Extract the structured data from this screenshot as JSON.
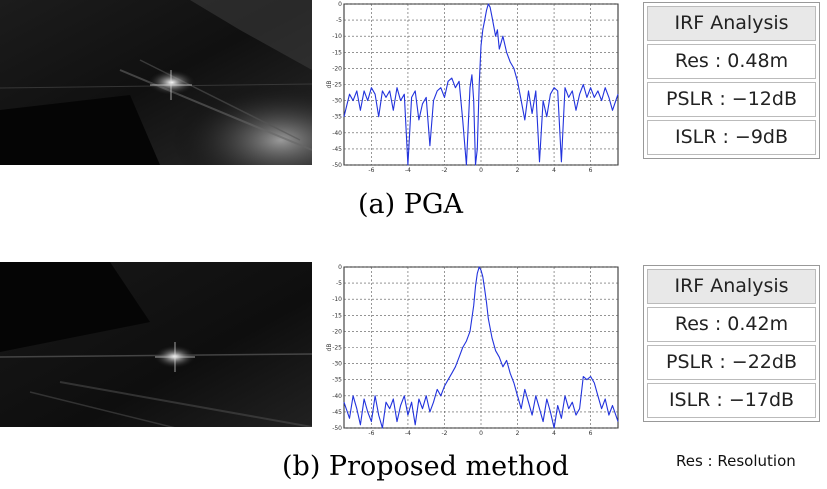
{
  "chart_data": [
    {
      "type": "line",
      "caption": "(a)  PGA",
      "ylabel": "dB",
      "xlim": [
        -7.5,
        7.5
      ],
      "ylim": [
        -50,
        0
      ],
      "x_ticks": [
        "-6",
        "-4",
        "-2",
        "0",
        "2",
        "4",
        "6"
      ],
      "y_ticks": [
        "0",
        "-5",
        "-10",
        "-15",
        "-20",
        "-25",
        "-30",
        "-35",
        "-40",
        "-45",
        "-50"
      ],
      "grid": true,
      "line_color": "#2233dd",
      "series": [
        {
          "x": [
            -7.5,
            -7.2,
            -7.0,
            -6.8,
            -6.6,
            -6.4,
            -6.2,
            -6.0,
            -5.8,
            -5.6,
            -5.4,
            -5.2,
            -5.0,
            -4.8,
            -4.6,
            -4.4,
            -4.2,
            -4.0,
            -3.8,
            -3.6,
            -3.4,
            -3.2,
            -3.0,
            -2.8,
            -2.6,
            -2.4,
            -2.2,
            -2.0,
            -1.8,
            -1.6,
            -1.4,
            -1.2,
            -1.0,
            -0.8,
            -0.6,
            -0.5,
            -0.4,
            -0.3,
            -0.2,
            -0.1,
            0.0,
            0.1,
            0.2,
            0.3,
            0.4,
            0.5,
            0.6,
            0.7,
            0.8,
            0.9,
            1.0,
            1.2,
            1.4,
            1.6,
            1.8,
            2.0,
            2.2,
            2.4,
            2.6,
            2.8,
            3.0,
            3.2,
            3.4,
            3.6,
            3.8,
            4.0,
            4.2,
            4.4,
            4.6,
            4.8,
            5.0,
            5.2,
            5.4,
            5.6,
            5.8,
            6.0,
            6.2,
            6.4,
            6.6,
            6.8,
            7.0,
            7.2,
            7.5
          ],
          "y": [
            -35,
            -28,
            -30,
            -27,
            -33,
            -27,
            -30,
            -26,
            -28,
            -35,
            -27,
            -29,
            -27,
            -33,
            -26,
            -30,
            -28,
            -50,
            -29,
            -27,
            -36,
            -31,
            -29,
            -44,
            -30,
            -27,
            -26,
            -29,
            -24,
            -23,
            -26,
            -24,
            -36,
            -50,
            -26,
            -22,
            -30,
            -50,
            -45,
            -25,
            -13,
            -8,
            -5,
            -2,
            0,
            -1,
            -4,
            -7,
            -10,
            -8,
            -14,
            -10,
            -15,
            -18,
            -20,
            -24,
            -30,
            -36,
            -27,
            -34,
            -27,
            -49,
            -30,
            -35,
            -28,
            -26,
            -27,
            -49,
            -26,
            -29,
            -27,
            -33,
            -28,
            -25,
            -29,
            -26,
            -29,
            -27,
            -30,
            -26,
            -29,
            -33,
            -28
          ]
        }
      ]
    },
    {
      "type": "line",
      "caption": "(b)  Proposed  method",
      "ylabel": "dB",
      "xlim": [
        -7.5,
        7.5
      ],
      "ylim": [
        -50,
        0
      ],
      "x_ticks": [
        "-6",
        "-4",
        "-2",
        "0",
        "2",
        "4",
        "6"
      ],
      "y_ticks": [
        "0",
        "-5",
        "-10",
        "-15",
        "-20",
        "-25",
        "-30",
        "-35",
        "-40",
        "-45",
        "-50"
      ],
      "grid": true,
      "line_color": "#2233dd",
      "series": [
        {
          "x": [
            -7.5,
            -7.2,
            -7.0,
            -6.8,
            -6.6,
            -6.4,
            -6.2,
            -6.0,
            -5.8,
            -5.6,
            -5.4,
            -5.2,
            -5.0,
            -4.8,
            -4.6,
            -4.4,
            -4.2,
            -4.0,
            -3.8,
            -3.6,
            -3.4,
            -3.2,
            -3.0,
            -2.8,
            -2.6,
            -2.4,
            -2.2,
            -2.0,
            -1.8,
            -1.6,
            -1.4,
            -1.2,
            -1.0,
            -0.8,
            -0.6,
            -0.4,
            -0.3,
            -0.2,
            -0.1,
            0.0,
            0.1,
            0.2,
            0.3,
            0.4,
            0.6,
            0.8,
            1.0,
            1.2,
            1.4,
            1.6,
            1.8,
            2.0,
            2.2,
            2.4,
            2.6,
            2.8,
            3.0,
            3.2,
            3.4,
            3.6,
            3.8,
            4.0,
            4.2,
            4.4,
            4.6,
            4.8,
            5.0,
            5.2,
            5.4,
            5.6,
            5.8,
            6.0,
            6.2,
            6.4,
            6.6,
            6.8,
            7.0,
            7.2,
            7.5
          ],
          "y": [
            -42,
            -47,
            -40,
            -44,
            -49,
            -41,
            -45,
            -48,
            -40,
            -46,
            -50,
            -42,
            -44,
            -41,
            -48,
            -43,
            -40,
            -46,
            -42,
            -49,
            -41,
            -44,
            -40,
            -45,
            -42,
            -38,
            -40,
            -37,
            -35,
            -33,
            -31,
            -28,
            -25,
            -23,
            -20,
            -12,
            -6,
            -2,
            0,
            -1,
            -3,
            -7,
            -11,
            -16,
            -22,
            -26,
            -28,
            -31,
            -29,
            -33,
            -36,
            -40,
            -44,
            -38,
            -42,
            -46,
            -40,
            -44,
            -48,
            -41,
            -45,
            -50,
            -43,
            -47,
            -40,
            -44,
            -42,
            -46,
            -44,
            -34,
            -35,
            -34,
            -36,
            -40,
            -44,
            -41,
            -46,
            -43,
            -48
          ]
        }
      ]
    }
  ],
  "irf_panels": [
    {
      "header": "IRF Analysis",
      "res": "Res : 0.48m",
      "pslr": "PSLR : −12dB",
      "islr": "ISLR : −9dB"
    },
    {
      "header": "IRF Analysis",
      "res": "Res : 0.42m",
      "pslr": "PSLR : −22dB",
      "islr": "ISLR : −17dB"
    }
  ],
  "footnote": "Res : Resolution"
}
